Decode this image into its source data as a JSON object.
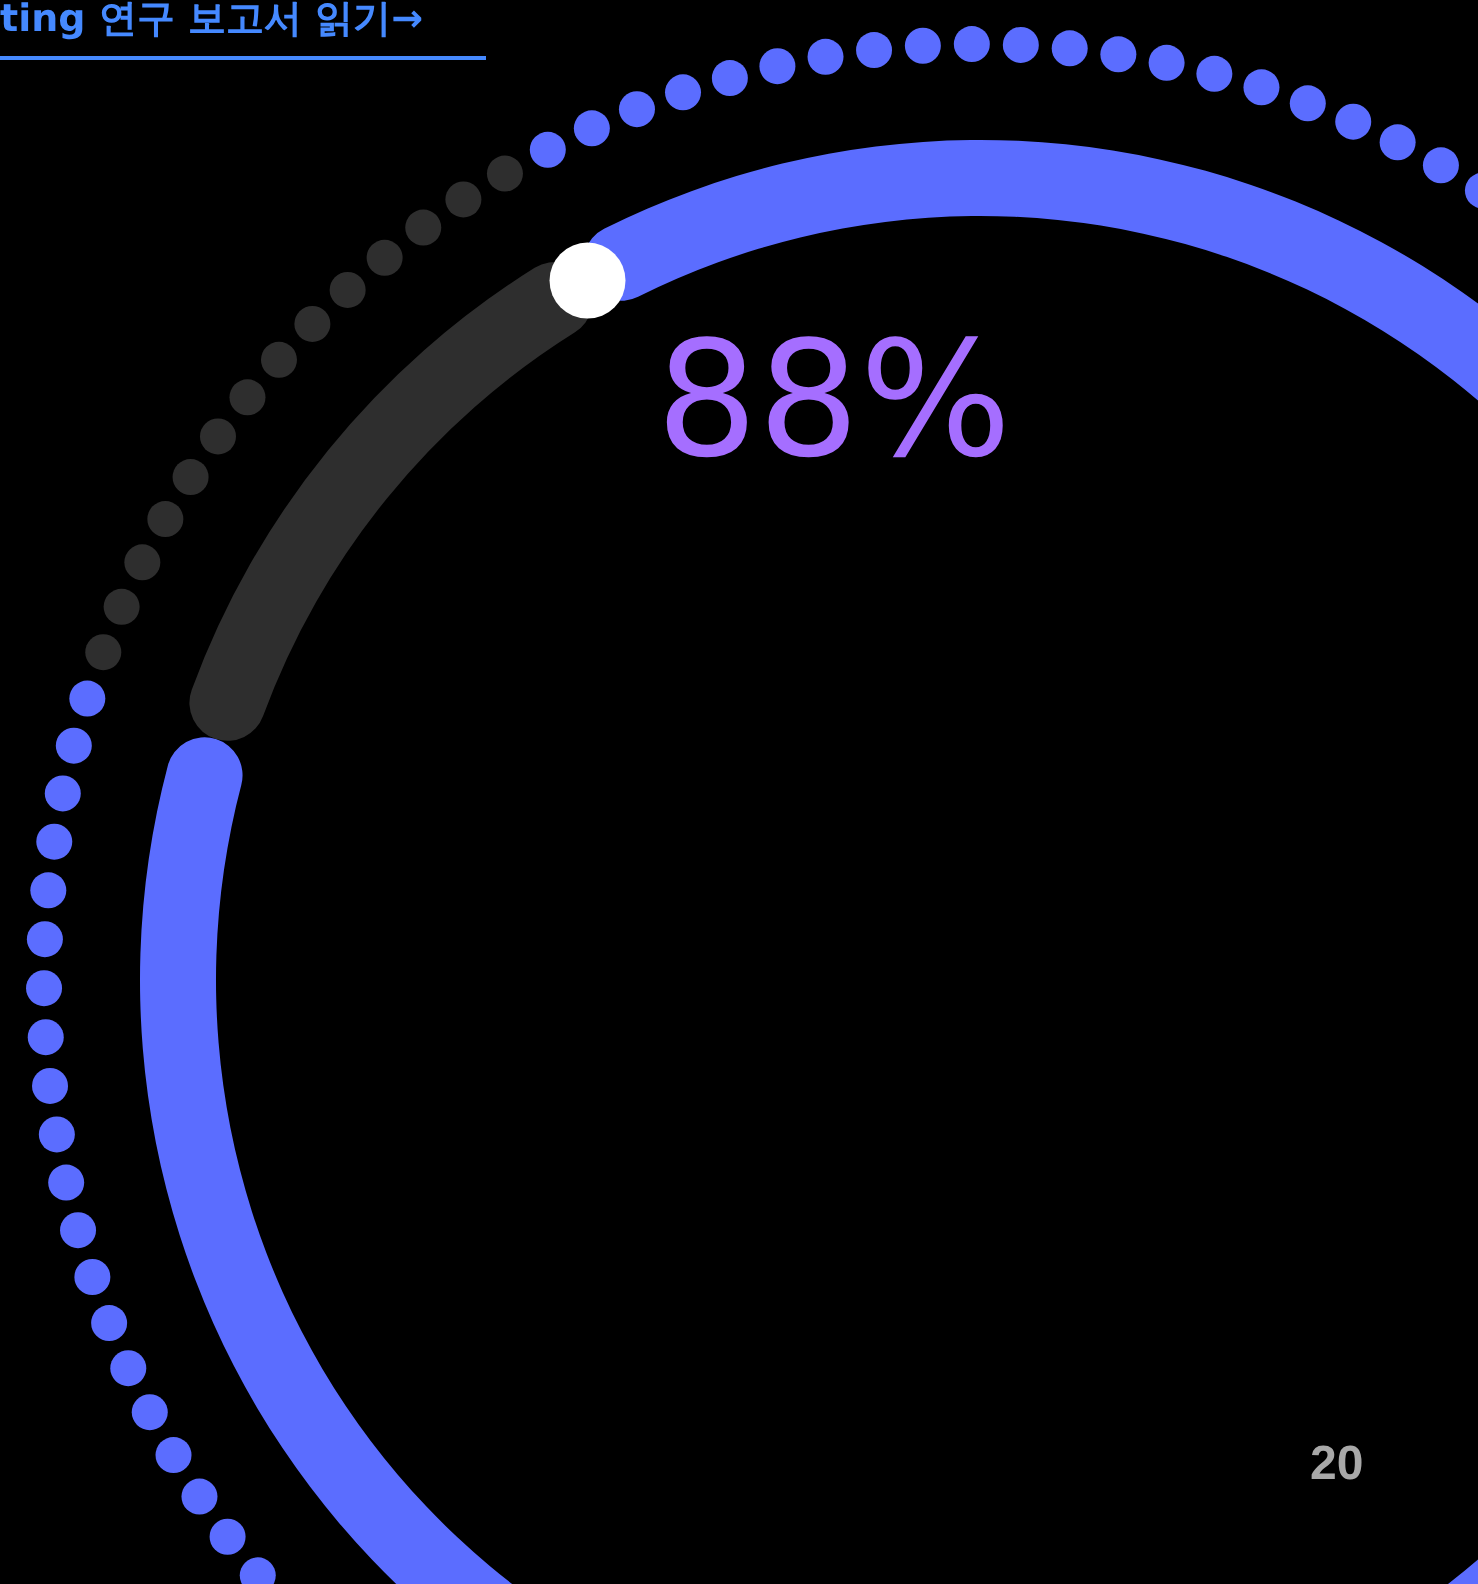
{
  "chart_data": {
    "type": "donut",
    "categories": [
      null,
      null
    ],
    "values": [
      88,
      12
    ],
    "colors": [
      "#5b6dff",
      "#2e2e2e"
    ],
    "value_labels": [
      "88%",
      null
    ],
    "annotations": [
      "ting 연구 보고서 읽기→",
      "20"
    ]
  }
}
